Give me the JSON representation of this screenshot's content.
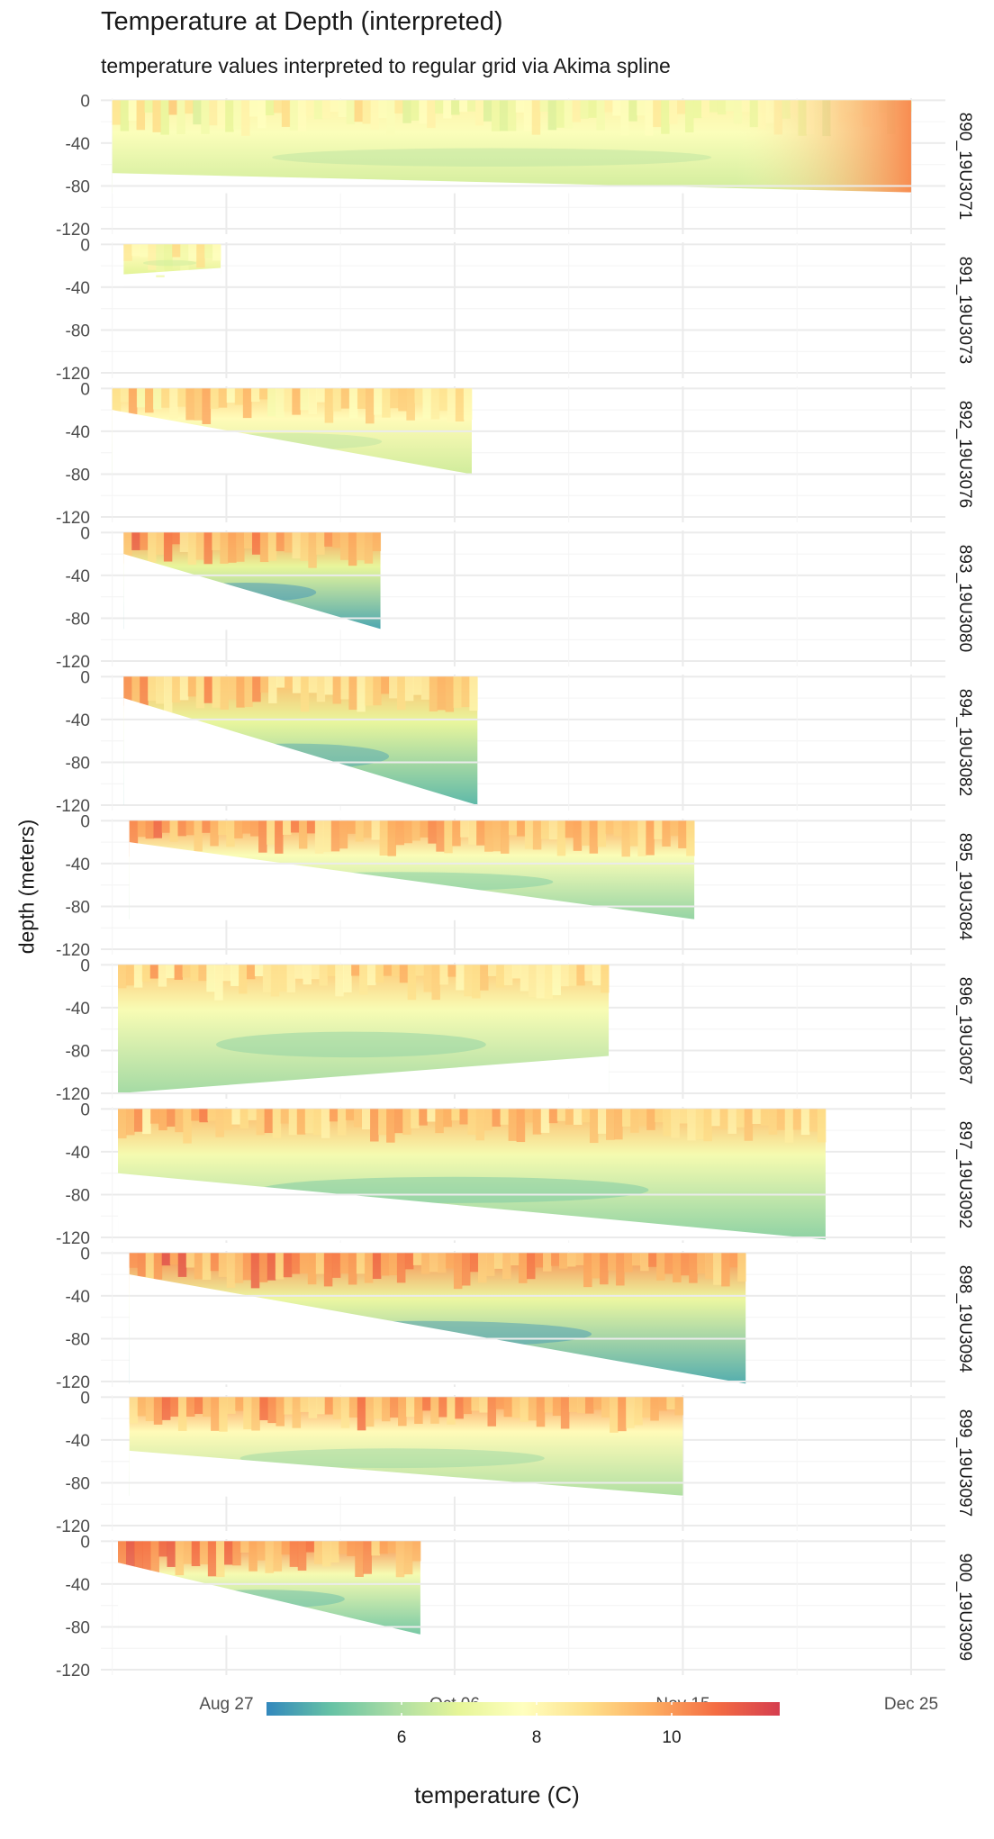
{
  "chart_data": {
    "type": "heatmap",
    "title": "Temperature at Depth (interpreted)",
    "subtitle": "temperature values interpreted to regular grid via Akima spline",
    "ylabel": "depth (meters)",
    "xlabel": "",
    "x_ticks": [
      "Aug 27",
      "Oct 06",
      "Nov 15",
      "Dec 25"
    ],
    "x_tick_dates": [
      "2019-08-27",
      "2019-10-06",
      "2019-11-15",
      "2019-12-25"
    ],
    "xlim": [
      "2019-08-05",
      "2019-12-31"
    ],
    "y_ticks": [
      0,
      -40,
      -80,
      -120
    ],
    "ylim": [
      -125,
      2
    ],
    "grid": true,
    "color_scale": {
      "name": "Spectral",
      "range": [
        4,
        11.6
      ],
      "colors": [
        "#3288bd",
        "#66c2a5",
        "#abdda4",
        "#e6f598",
        "#ffffbf",
        "#fee08b",
        "#fdae61",
        "#f46d43",
        "#d53e4f"
      ],
      "ticks": [
        6,
        8,
        10
      ],
      "legend_title": "temperature (C)",
      "legend_position": "bottom"
    },
    "panels": [
      {
        "label": "890_19U3071",
        "start": "2019-08-07",
        "end": "2019-12-25",
        "max_depth_start": -68,
        "max_depth_end": -86,
        "surface_temp": 8.2,
        "deep_temp": 6.5,
        "warm_end": true
      },
      {
        "label": "891_19U3073",
        "start": "2019-08-09",
        "end": "2019-08-26",
        "max_depth_start": -28,
        "max_depth_end": -22,
        "surface_temp": 8.5,
        "deep_temp": 6.8,
        "warm_end": false
      },
      {
        "label": "892_19U3076",
        "start": "2019-08-07",
        "end": "2019-10-09",
        "max_depth_start": -20,
        "max_depth_end": -80,
        "surface_temp": 9.0,
        "deep_temp": 6.5,
        "warm_end": false
      },
      {
        "label": "893_19U3080",
        "start": "2019-08-09",
        "end": "2019-09-23",
        "max_depth_start": -20,
        "max_depth_end": -90,
        "surface_temp": 10.0,
        "deep_temp": 4.5,
        "warm_end": false
      },
      {
        "label": "894_19U3082",
        "start": "2019-08-09",
        "end": "2019-10-10",
        "max_depth_start": -20,
        "max_depth_end": -120,
        "surface_temp": 9.5,
        "deep_temp": 4.8,
        "warm_end": false
      },
      {
        "label": "895_19U3084",
        "start": "2019-08-10",
        "end": "2019-11-17",
        "max_depth_start": -20,
        "max_depth_end": -92,
        "surface_temp": 9.8,
        "deep_temp": 5.6,
        "warm_end": false
      },
      {
        "label": "896_19U3087",
        "start": "2019-08-08",
        "end": "2019-11-02",
        "max_depth_start": -120,
        "max_depth_end": -85,
        "surface_temp": 9.2,
        "deep_temp": 5.8,
        "warm_end": false
      },
      {
        "label": "897_19U3092",
        "start": "2019-08-08",
        "end": "2019-12-10",
        "max_depth_start": -60,
        "max_depth_end": -122,
        "surface_temp": 9.5,
        "deep_temp": 5.5,
        "warm_end": false
      },
      {
        "label": "898_19U3094",
        "start": "2019-08-10",
        "end": "2019-11-26",
        "max_depth_start": -20,
        "max_depth_end": -122,
        "surface_temp": 10.2,
        "deep_temp": 4.6,
        "warm_end": false
      },
      {
        "label": "899_19U3097",
        "start": "2019-08-10",
        "end": "2019-11-15",
        "max_depth_start": -50,
        "max_depth_end": -92,
        "surface_temp": 10.0,
        "deep_temp": 6.0,
        "warm_end": false
      },
      {
        "label": "900_19U3099",
        "start": "2019-08-08",
        "end": "2019-09-30",
        "max_depth_start": -20,
        "max_depth_end": -87,
        "surface_temp": 10.2,
        "deep_temp": 5.2,
        "warm_end": false
      }
    ]
  }
}
